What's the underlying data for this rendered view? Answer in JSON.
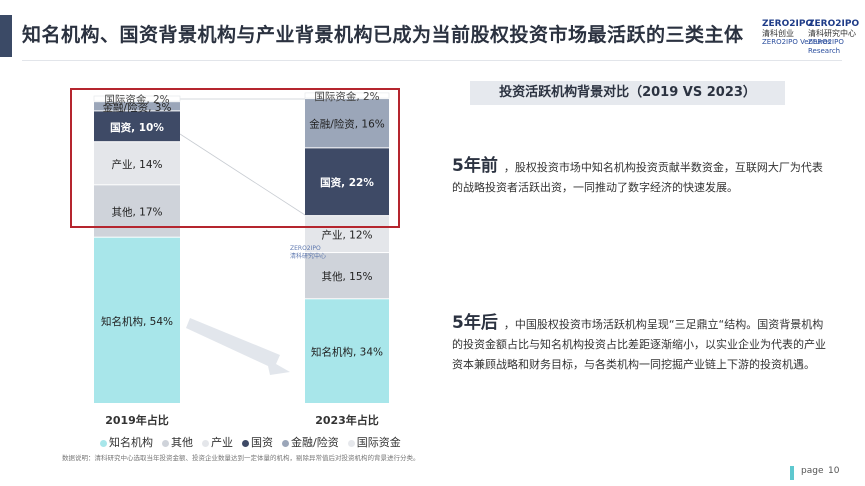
{
  "header": {
    "title": "知名机构、国资背景机构与产业背景机构已成为当前股权投资市场最活跃的三类主体",
    "logo_left": {
      "mark": "ZERO2IPO",
      "name": "清科创业",
      "sub": "ZERO2IPO Ventures"
    },
    "logo_right": {
      "mark": "ZERO2IPO",
      "name": "清科研究中心",
      "sub": "ZERO2IPO Research"
    }
  },
  "chart_data": {
    "type": "bar",
    "stacked": true,
    "categories": [
      "2019年占比",
      "2023年占比"
    ],
    "series": [
      {
        "name": "知名机构",
        "values": [
          54,
          34
        ],
        "color": "#a8e6ea",
        "label_color": "#222"
      },
      {
        "name": "其他",
        "values": [
          17,
          15
        ],
        "color": "#cfd3da",
        "label_color": "#222"
      },
      {
        "name": "产业",
        "values": [
          14,
          12
        ],
        "color": "#e4e6ea",
        "label_color": "#222"
      },
      {
        "name": "国资",
        "values": [
          10,
          22
        ],
        "color": "#3e4a66",
        "label_color": "#ffffff"
      },
      {
        "name": "金融/险资",
        "values": [
          3,
          16
        ],
        "color": "#9ba6b9",
        "label_color": "#222"
      },
      {
        "name": "国际资金",
        "values": [
          2,
          2
        ],
        "color": "#ffffff",
        "label_color": "#444"
      }
    ],
    "value_suffix": "%",
    "legend_position": "bottom"
  },
  "right_panel": {
    "header": "投资活跃机构背景对比（2019 VS 2023）",
    "p1_lead": "5年前",
    "p1_text": "，股权投资市场中知名机构投资贡献半数资金，互联网大厂为代表的战略投资者活跃出资，一同推动了数字经济的快速发展。",
    "p2_lead": "5年后",
    "p2_text": "，中国股权投资市场活跃机构呈现“三足鼎立“结构。国资背景机构的投资金额占比与知名机构投资占比差距逐渐缩小，以实业企业为代表的产业资本兼顾战略和财务目标，与各类机构一同挖掘产业链上下游的投资机遇。"
  },
  "footer": {
    "note": "数据说明：清科研究中心选取当年投资金额、投资企业数量达到一定体量的机构，剔除异常值后对投资机构的背景进行分类。",
    "page_label": "page",
    "page_number": "10"
  },
  "watermark": {
    "mark": "ZERO2IPO",
    "name": "清科研究中心"
  }
}
